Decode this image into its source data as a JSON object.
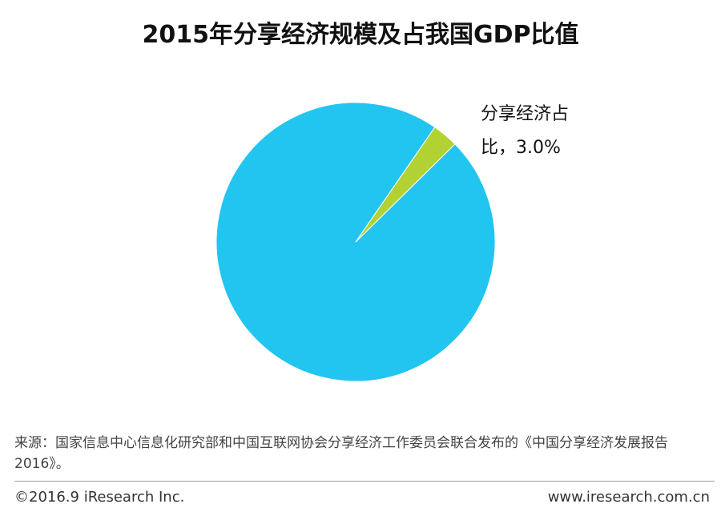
{
  "title": "2015年分享经济规模及占我国GDP比值",
  "chart_data": {
    "type": "pie",
    "title": "2015年分享经济规模及占我国GDP比值",
    "slices": [
      {
        "name": "",
        "value": 97.0,
        "color": "#21C5F0"
      },
      {
        "name": "分享经济占比",
        "value": 3.0,
        "color": "#B2D234"
      }
    ],
    "annotation": {
      "line1": "分享经济占",
      "line2": "比，3.0%"
    }
  },
  "source": {
    "text": "来源：国家信息中心信息化研究部和中国互联网协会分享经济工作委员会联合发布的《中国分享经济发展报告2016》。"
  },
  "footer": {
    "copyright": "©2016.9 iResearch Inc.",
    "website": "www.iresearch.com.cn"
  }
}
